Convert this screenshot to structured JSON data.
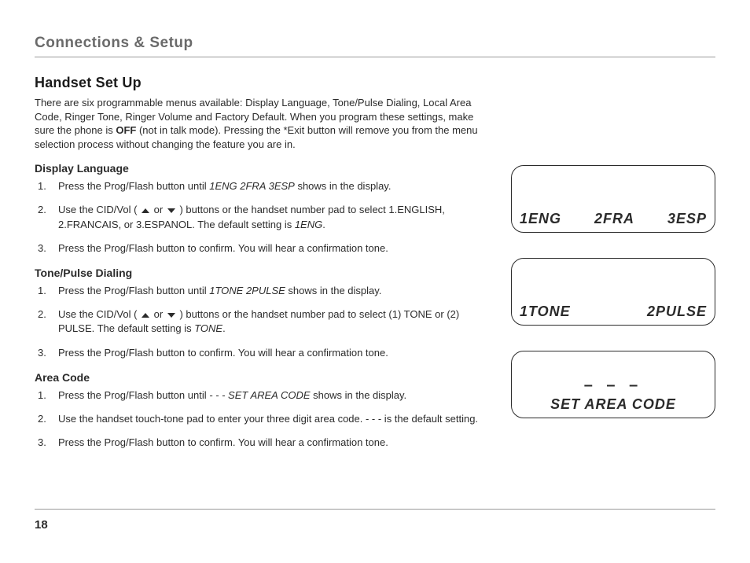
{
  "section_header": "Connections & Setup",
  "page_title": "Handset Set Up",
  "intro_html": "There are six programmable menus available: Display Language, Tone/Pulse Dialing, Local Area Code, Ringer Tone, Ringer Volume and Factory Default. When you program these settings, make sure the phone is <b>OFF</b> (not in talk mode). Pressing the *Exit button will remove you from the menu selection process without changing the feature you are in.",
  "sections": {
    "display_language": {
      "heading": "Display Language",
      "step1_a": "Press the Prog/Flash button until ",
      "step1_i": "1ENG 2FRA 3ESP",
      "step1_b": " shows in the display.",
      "step2_a": "Use the CID/Vol ( ",
      "step2_b": " or ",
      "step2_c": " ) buttons or the handset number pad to select 1.ENGLISH, 2.FRANCAIS, or 3.ESPANOL. The default setting is ",
      "step2_i": "1ENG",
      "step2_d": ".",
      "step3": "Press the Prog/Flash button to confirm. You will hear a confirmation tone."
    },
    "tone_pulse": {
      "heading": "Tone/Pulse Dialing",
      "step1_a": "Press the Prog/Flash button until ",
      "step1_i": "1TONE 2PULSE",
      "step1_b": " shows in the display.",
      "step2_a": "Use the CID/Vol ( ",
      "step2_b": " or ",
      "step2_c": " ) buttons or the handset number pad to select (1) TONE or (2) PULSE. The default setting is ",
      "step2_i": "TONE",
      "step2_d": ".",
      "step3": "Press the Prog/Flash button to confirm. You will hear a confirmation tone."
    },
    "area_code": {
      "heading": "Area Code",
      "step1_a": "Press the Prog/Flash button until ",
      "step1_i": "- - - SET AREA CODE",
      "step1_b": " shows in the display.",
      "step2": "Use the handset touch-tone pad to enter your three digit area code. - - - is the default setting.",
      "step3": "Press the Prog/Flash button to confirm. You will hear a confirmation tone."
    }
  },
  "lcd": {
    "lang_a": "1ENG",
    "lang_b": "2FRA",
    "lang_c": "3ESP",
    "tone_a": "1TONE",
    "tone_b": "2PULSE",
    "area_dashes": "– – –",
    "area_label": "SET AREA CODE"
  },
  "page_number": "18"
}
